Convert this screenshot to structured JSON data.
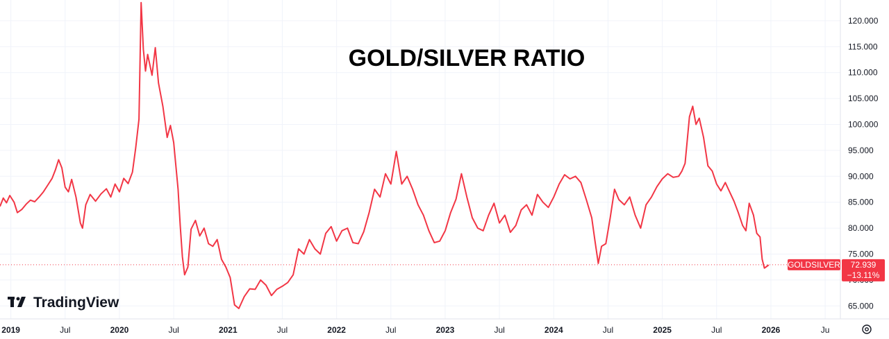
{
  "chart_data": {
    "type": "line",
    "title": "GOLD/SILVER RATIO",
    "ylim": [
      62.5,
      124
    ],
    "y_ticks": [
      "65.000",
      "70.000",
      "75.000",
      "80.000",
      "85.000",
      "90.000",
      "95.000",
      "100.000",
      "105.000",
      "110.000",
      "115.000",
      "120.000"
    ],
    "x_ticks": [
      {
        "label": "2019",
        "t": 2019.0,
        "year": true
      },
      {
        "label": "Jul",
        "t": 2019.5
      },
      {
        "label": "2020",
        "t": 2020.0,
        "year": true
      },
      {
        "label": "Jul",
        "t": 2020.5
      },
      {
        "label": "2021",
        "t": 2021.0,
        "year": true
      },
      {
        "label": "Jul",
        "t": 2021.5
      },
      {
        "label": "2022",
        "t": 2022.0,
        "year": true
      },
      {
        "label": "Jul",
        "t": 2022.5
      },
      {
        "label": "2023",
        "t": 2023.0,
        "year": true
      },
      {
        "label": "Jul",
        "t": 2023.5
      },
      {
        "label": "2024",
        "t": 2024.0,
        "year": true
      },
      {
        "label": "Jul",
        "t": 2024.5
      },
      {
        "label": "2025",
        "t": 2025.0,
        "year": true
      },
      {
        "label": "Jul",
        "t": 2025.5
      },
      {
        "label": "2026",
        "t": 2026.0,
        "year": true
      },
      {
        "label": "Ju",
        "t": 2026.5
      }
    ],
    "xlim": [
      2018.9,
      2026.64
    ],
    "series": [
      {
        "name": "GOLDSILVER",
        "color": "#f23645",
        "points": [
          [
            2018.9,
            84.2
          ],
          [
            2018.93,
            85.8
          ],
          [
            2018.96,
            84.9
          ],
          [
            2018.99,
            86.3
          ],
          [
            2019.03,
            85.0
          ],
          [
            2019.06,
            83.0
          ],
          [
            2019.1,
            83.6
          ],
          [
            2019.14,
            84.6
          ],
          [
            2019.18,
            85.4
          ],
          [
            2019.22,
            85.1
          ],
          [
            2019.26,
            86.0
          ],
          [
            2019.3,
            87.0
          ],
          [
            2019.34,
            88.3
          ],
          [
            2019.38,
            89.6
          ],
          [
            2019.41,
            91.2
          ],
          [
            2019.44,
            93.2
          ],
          [
            2019.47,
            91.6
          ],
          [
            2019.5,
            87.9
          ],
          [
            2019.53,
            87.0
          ],
          [
            2019.56,
            89.4
          ],
          [
            2019.6,
            86.0
          ],
          [
            2019.64,
            81.0
          ],
          [
            2019.66,
            80.0
          ],
          [
            2019.69,
            84.5
          ],
          [
            2019.73,
            86.5
          ],
          [
            2019.78,
            85.2
          ],
          [
            2019.83,
            86.6
          ],
          [
            2019.88,
            87.6
          ],
          [
            2019.92,
            86.0
          ],
          [
            2019.96,
            88.5
          ],
          [
            2020.0,
            87.0
          ],
          [
            2020.04,
            89.6
          ],
          [
            2020.08,
            88.6
          ],
          [
            2020.12,
            90.8
          ],
          [
            2020.15,
            95.5
          ],
          [
            2020.18,
            101.0
          ],
          [
            2020.2,
            123.5
          ],
          [
            2020.22,
            114.5
          ],
          [
            2020.24,
            110.3
          ],
          [
            2020.26,
            113.5
          ],
          [
            2020.3,
            109.5
          ],
          [
            2020.33,
            114.8
          ],
          [
            2020.36,
            108.0
          ],
          [
            2020.4,
            103.5
          ],
          [
            2020.44,
            97.5
          ],
          [
            2020.47,
            99.8
          ],
          [
            2020.5,
            96.5
          ],
          [
            2020.54,
            87.5
          ],
          [
            2020.56,
            80.5
          ],
          [
            2020.58,
            74.5
          ],
          [
            2020.6,
            71.0
          ],
          [
            2020.63,
            72.5
          ],
          [
            2020.66,
            79.8
          ],
          [
            2020.7,
            81.5
          ],
          [
            2020.74,
            78.5
          ],
          [
            2020.78,
            80.0
          ],
          [
            2020.82,
            77.0
          ],
          [
            2020.86,
            76.5
          ],
          [
            2020.9,
            77.8
          ],
          [
            2020.94,
            74.0
          ],
          [
            2020.98,
            72.5
          ],
          [
            2021.02,
            70.5
          ],
          [
            2021.06,
            65.2
          ],
          [
            2021.1,
            64.5
          ],
          [
            2021.15,
            66.8
          ],
          [
            2021.2,
            68.3
          ],
          [
            2021.25,
            68.2
          ],
          [
            2021.3,
            70.0
          ],
          [
            2021.35,
            69.0
          ],
          [
            2021.4,
            67.0
          ],
          [
            2021.45,
            68.2
          ],
          [
            2021.5,
            68.8
          ],
          [
            2021.55,
            69.5
          ],
          [
            2021.6,
            71.0
          ],
          [
            2021.65,
            76.0
          ],
          [
            2021.7,
            75.0
          ],
          [
            2021.75,
            77.8
          ],
          [
            2021.8,
            76.0
          ],
          [
            2021.85,
            75.0
          ],
          [
            2021.9,
            79.0
          ],
          [
            2021.95,
            80.3
          ],
          [
            2022.0,
            77.5
          ],
          [
            2022.05,
            79.5
          ],
          [
            2022.1,
            80.0
          ],
          [
            2022.15,
            77.2
          ],
          [
            2022.2,
            77.0
          ],
          [
            2022.25,
            79.3
          ],
          [
            2022.3,
            83.0
          ],
          [
            2022.35,
            87.5
          ],
          [
            2022.4,
            86.0
          ],
          [
            2022.45,
            90.5
          ],
          [
            2022.5,
            88.5
          ],
          [
            2022.55,
            94.8
          ],
          [
            2022.6,
            88.5
          ],
          [
            2022.65,
            90.0
          ],
          [
            2022.7,
            87.5
          ],
          [
            2022.75,
            84.5
          ],
          [
            2022.8,
            82.5
          ],
          [
            2022.85,
            79.5
          ],
          [
            2022.9,
            77.2
          ],
          [
            2022.95,
            77.5
          ],
          [
            2023.0,
            79.5
          ],
          [
            2023.05,
            83.0
          ],
          [
            2023.1,
            85.6
          ],
          [
            2023.15,
            90.5
          ],
          [
            2023.2,
            86.0
          ],
          [
            2023.25,
            82.0
          ],
          [
            2023.3,
            80.0
          ],
          [
            2023.35,
            79.5
          ],
          [
            2023.4,
            82.5
          ],
          [
            2023.45,
            84.8
          ],
          [
            2023.5,
            81.0
          ],
          [
            2023.55,
            82.5
          ],
          [
            2023.6,
            79.2
          ],
          [
            2023.65,
            80.5
          ],
          [
            2023.7,
            83.5
          ],
          [
            2023.75,
            84.5
          ],
          [
            2023.8,
            82.5
          ],
          [
            2023.85,
            86.5
          ],
          [
            2023.9,
            85.0
          ],
          [
            2023.95,
            84.0
          ],
          [
            2024.0,
            86.0
          ],
          [
            2024.05,
            88.5
          ],
          [
            2024.1,
            90.3
          ],
          [
            2024.15,
            89.5
          ],
          [
            2024.2,
            90.0
          ],
          [
            2024.25,
            88.8
          ],
          [
            2024.3,
            85.5
          ],
          [
            2024.35,
            82.0
          ],
          [
            2024.38,
            77.5
          ],
          [
            2024.41,
            73.2
          ],
          [
            2024.44,
            76.5
          ],
          [
            2024.48,
            77.0
          ],
          [
            2024.52,
            82.0
          ],
          [
            2024.56,
            87.5
          ],
          [
            2024.6,
            85.5
          ],
          [
            2024.65,
            84.5
          ],
          [
            2024.7,
            86.0
          ],
          [
            2024.75,
            82.5
          ],
          [
            2024.8,
            80.0
          ],
          [
            2024.85,
            84.5
          ],
          [
            2024.9,
            86.0
          ],
          [
            2024.95,
            88.0
          ],
          [
            2025.0,
            89.5
          ],
          [
            2025.05,
            90.5
          ],
          [
            2025.1,
            89.8
          ],
          [
            2025.15,
            90.0
          ],
          [
            2025.18,
            91.0
          ],
          [
            2025.21,
            92.5
          ],
          [
            2025.25,
            101.5
          ],
          [
            2025.28,
            103.5
          ],
          [
            2025.31,
            100.0
          ],
          [
            2025.34,
            101.2
          ],
          [
            2025.38,
            97.5
          ],
          [
            2025.42,
            92.0
          ],
          [
            2025.46,
            91.0
          ],
          [
            2025.5,
            88.5
          ],
          [
            2025.54,
            87.2
          ],
          [
            2025.58,
            88.8
          ],
          [
            2025.62,
            87.0
          ],
          [
            2025.66,
            85.2
          ],
          [
            2025.7,
            83.0
          ],
          [
            2025.74,
            80.5
          ],
          [
            2025.77,
            79.5
          ],
          [
            2025.8,
            84.8
          ],
          [
            2025.84,
            82.5
          ],
          [
            2025.87,
            79.0
          ],
          [
            2025.9,
            78.3
          ],
          [
            2025.92,
            74.0
          ],
          [
            2025.94,
            72.3
          ],
          [
            2025.96,
            72.6
          ],
          [
            2025.98,
            72.9
          ]
        ]
      }
    ],
    "last_value": {
      "name": "GOLDSILVER",
      "value": "72.939",
      "change": "−13.11%",
      "y": 72.939
    },
    "grid": true,
    "legend": "none"
  },
  "branding": {
    "logo_text": "TradingView"
  },
  "toolbar": {
    "settings_icon": "gear-icon"
  }
}
